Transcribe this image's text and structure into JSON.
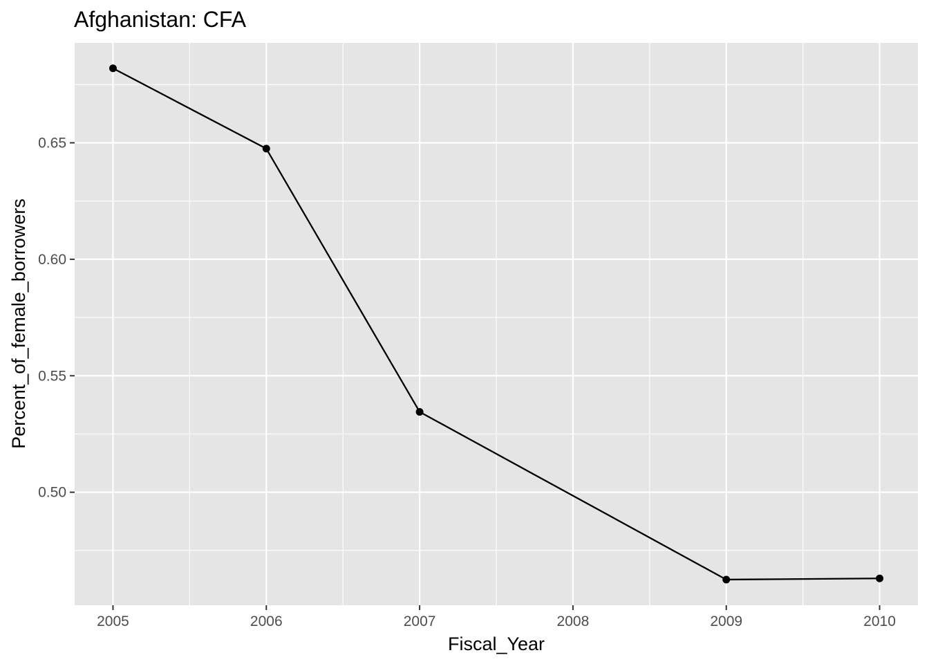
{
  "chart_data": {
    "type": "line",
    "title": "Afghanistan:  CFA",
    "xlabel": "Fiscal_Year",
    "ylabel": "Percent_of_female_borrowers",
    "x": [
      2005,
      2006,
      2007,
      2009,
      2010
    ],
    "series": [
      {
        "values": [
          0.682,
          0.6475,
          0.5345,
          0.4625,
          0.463
        ]
      }
    ],
    "x_ticks": [
      2005,
      2006,
      2007,
      2008,
      2009,
      2010
    ],
    "x_tick_labels": [
      "2005",
      "2006",
      "2007",
      "2008",
      "2009",
      "2010"
    ],
    "y_ticks": [
      0.5,
      0.55,
      0.6,
      0.65
    ],
    "y_tick_labels": [
      "0.50",
      "0.55",
      "0.60",
      "0.65"
    ],
    "xlim": [
      2004.75,
      2010.25
    ],
    "ylim": [
      0.4515,
      0.6929
    ],
    "grid": true,
    "colors": {
      "panel_background": "#e5e5e5",
      "grid_line": "#ffffff",
      "series_line": "#000000",
      "tick_color": "#333333",
      "tick_label": "#4d4d4d"
    }
  }
}
